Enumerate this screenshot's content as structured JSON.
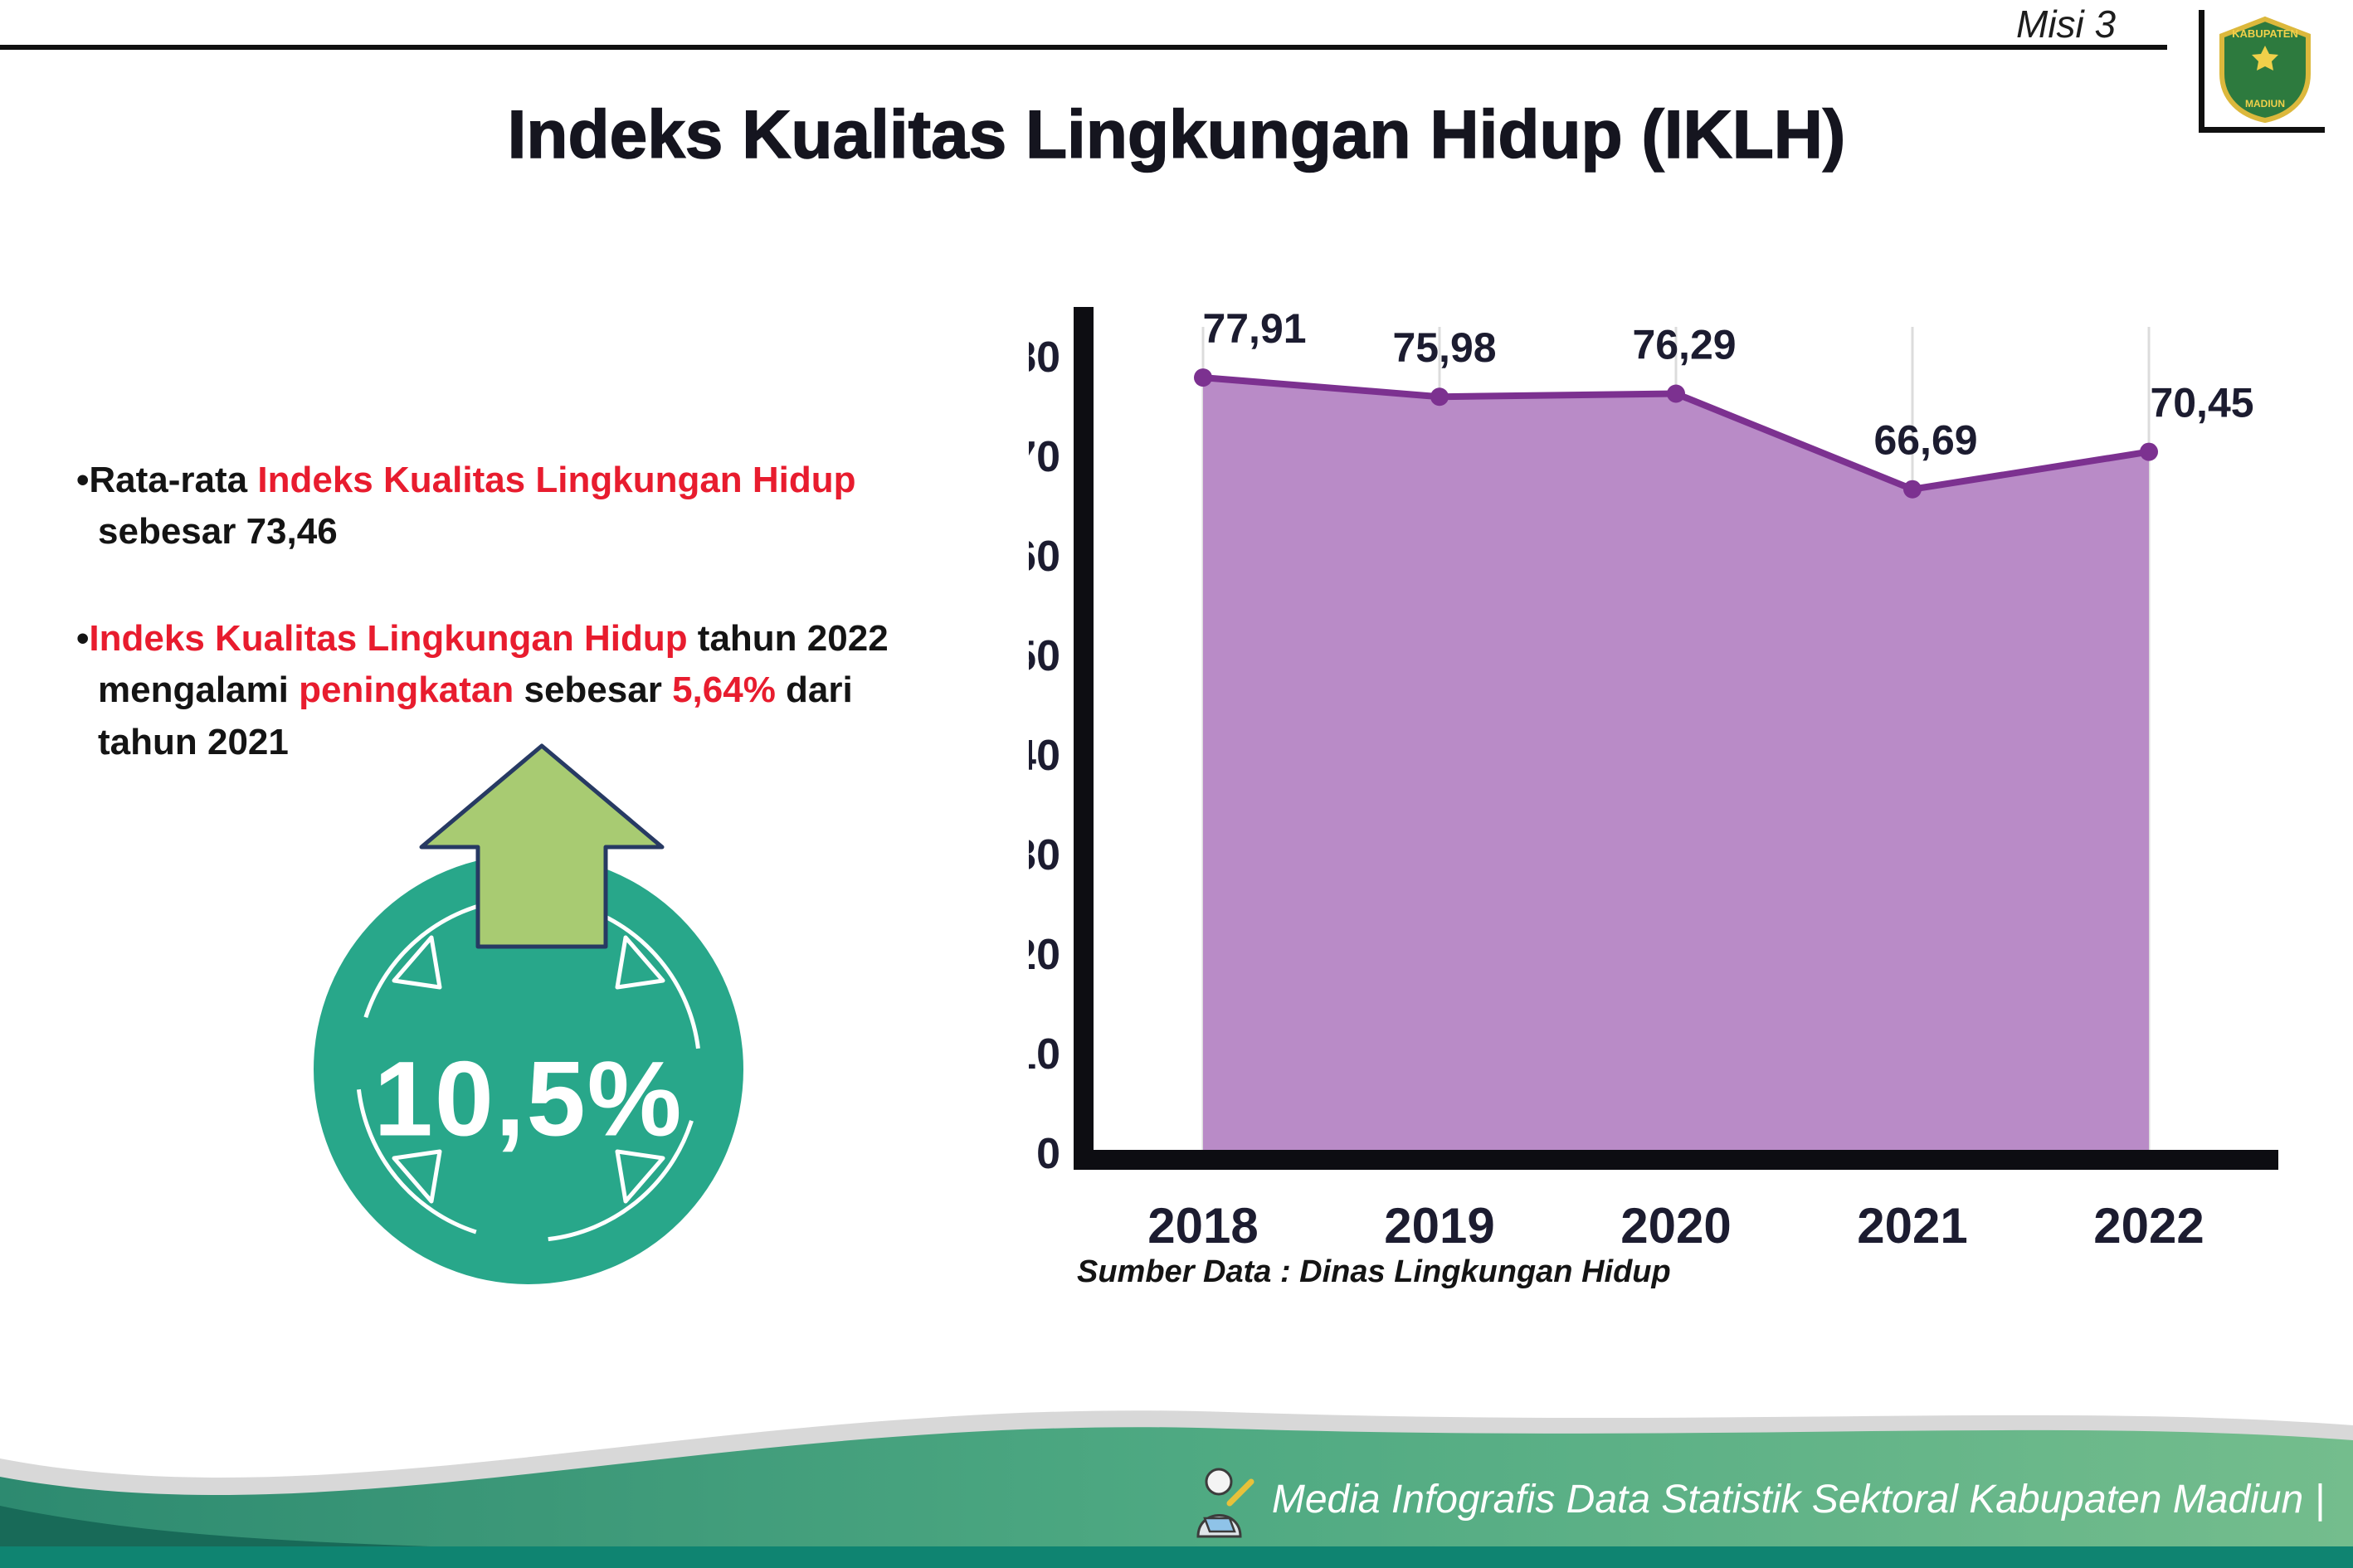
{
  "header": {
    "misi": "Misi 3",
    "title": "Indeks Kualitas Lingkungan Hidup (IKLH)"
  },
  "logo": {
    "region_top": "KABUPATEN",
    "region_bottom": "MADIUN"
  },
  "ui": {
    "bullet_marker": "•"
  },
  "bullets": [
    {
      "segments": [
        {
          "text": "Rata-rata ",
          "red": false
        },
        {
          "text": "Indeks Kualitas Lingkungan Hidup",
          "red": true
        },
        {
          "text": " sebesar 73,46",
          "red": false
        }
      ]
    },
    {
      "segments": [
        {
          "text": "Indeks Kualitas Lingkungan Hidup",
          "red": true
        },
        {
          "text": " tahun 2022 mengalami ",
          "red": false
        },
        {
          "text": "peningkatan",
          "red": true
        },
        {
          "text": " sebesar ",
          "red": false
        },
        {
          "text": "5,64%",
          "red": true
        },
        {
          "text": " dari tahun 2021",
          "red": false
        }
      ]
    }
  ],
  "badge": {
    "value": "10,5%"
  },
  "chart_data": {
    "type": "area",
    "title": "",
    "categories": [
      "2018",
      "2019",
      "2020",
      "2021",
      "2022"
    ],
    "values": [
      77.91,
      75.98,
      76.29,
      66.69,
      70.45
    ],
    "point_labels": [
      "77,91",
      "75,98",
      "76,29",
      "66,69",
      "70,45"
    ],
    "ylim": [
      0,
      80
    ],
    "ytick_step": 10,
    "grid": "vertical-light",
    "legend": "none",
    "fill_color": "#b98bc7",
    "line_color": "#7c3190",
    "source": "Sumber Data : Dinas Lingkungan Hidup"
  },
  "footer": {
    "caption": "Media Infografis Data Statistik Sektoral Kabupaten Madiun |"
  }
}
